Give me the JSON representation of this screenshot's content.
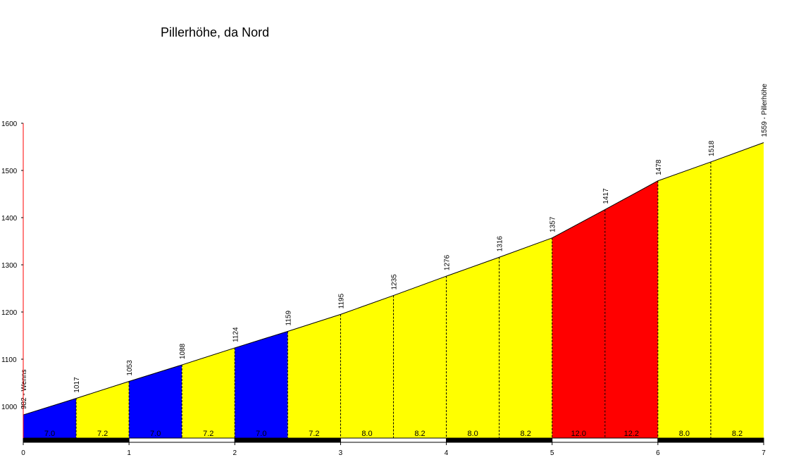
{
  "chart_data": {
    "type": "area",
    "title": "Pillerhöhe, da Nord",
    "xlabel": "",
    "ylabel": "",
    "xlim": [
      0,
      7
    ],
    "ylim": [
      930,
      1600
    ],
    "y_ticks": [
      1000,
      1100,
      1200,
      1300,
      1400,
      1500,
      1600
    ],
    "x_ticks": [
      0,
      1,
      2,
      3,
      4,
      5,
      6,
      7
    ],
    "points": [
      {
        "x": 0.0,
        "y": 982,
        "label": "982 - Wenns"
      },
      {
        "x": 0.5,
        "y": 1017,
        "label": "1017"
      },
      {
        "x": 1.0,
        "y": 1053,
        "label": "1053"
      },
      {
        "x": 1.5,
        "y": 1088,
        "label": "1088"
      },
      {
        "x": 2.0,
        "y": 1124,
        "label": "1124"
      },
      {
        "x": 2.5,
        "y": 1159,
        "label": "1159"
      },
      {
        "x": 3.0,
        "y": 1195,
        "label": "1195"
      },
      {
        "x": 3.5,
        "y": 1235,
        "label": "1235"
      },
      {
        "x": 4.0,
        "y": 1276,
        "label": "1276"
      },
      {
        "x": 4.5,
        "y": 1316,
        "label": "1316"
      },
      {
        "x": 5.0,
        "y": 1357,
        "label": "1357"
      },
      {
        "x": 5.5,
        "y": 1417,
        "label": "1417"
      },
      {
        "x": 6.0,
        "y": 1478,
        "label": "1478"
      },
      {
        "x": 6.5,
        "y": 1518,
        "label": "1518"
      },
      {
        "x": 7.0,
        "y": 1559,
        "label": "1559 - Pillerhöhe"
      }
    ],
    "segments": [
      {
        "from": 0.0,
        "to": 0.5,
        "gradient": "7.0",
        "color": "#0000ff"
      },
      {
        "from": 0.5,
        "to": 1.0,
        "gradient": "7.2",
        "color": "#ffff00"
      },
      {
        "from": 1.0,
        "to": 1.5,
        "gradient": "7.0",
        "color": "#0000ff"
      },
      {
        "from": 1.5,
        "to": 2.0,
        "gradient": "7.2",
        "color": "#ffff00"
      },
      {
        "from": 2.0,
        "to": 2.5,
        "gradient": "7.0",
        "color": "#0000ff"
      },
      {
        "from": 2.5,
        "to": 3.0,
        "gradient": "7.2",
        "color": "#ffff00"
      },
      {
        "from": 3.0,
        "to": 3.5,
        "gradient": "8.0",
        "color": "#ffff00"
      },
      {
        "from": 3.5,
        "to": 4.0,
        "gradient": "8.2",
        "color": "#ffff00"
      },
      {
        "from": 4.0,
        "to": 4.5,
        "gradient": "8.0",
        "color": "#ffff00"
      },
      {
        "from": 4.5,
        "to": 5.0,
        "gradient": "8.2",
        "color": "#ffff00"
      },
      {
        "from": 5.0,
        "to": 5.5,
        "gradient": "12.0",
        "color": "#ff0000"
      },
      {
        "from": 5.5,
        "to": 6.0,
        "gradient": "12.2",
        "color": "#ff0000"
      },
      {
        "from": 6.0,
        "to": 6.5,
        "gradient": "8.0",
        "color": "#ffff00"
      },
      {
        "from": 6.5,
        "to": 7.0,
        "gradient": "8.2",
        "color": "#ffff00"
      }
    ],
    "grid": false,
    "legend": "none",
    "colors": {
      "axis": "#000000",
      "y_axis": "#ff0000",
      "dashes": "#000000"
    }
  }
}
